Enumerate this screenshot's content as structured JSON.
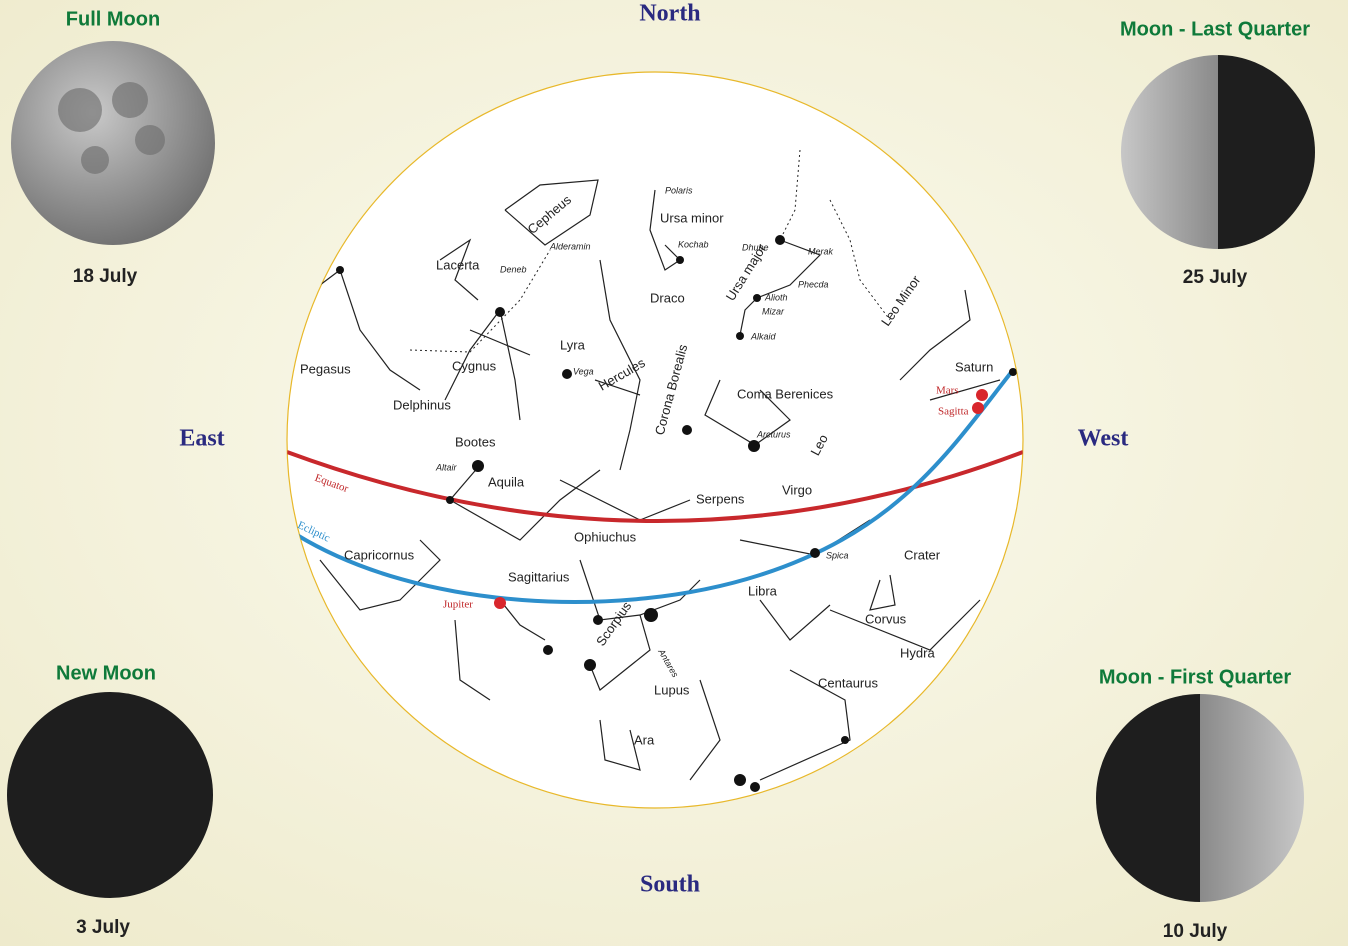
{
  "directions": {
    "north": "North",
    "east": "East",
    "west": "West",
    "south": "South"
  },
  "moons": [
    {
      "title": "Full Moon",
      "date": "18 July"
    },
    {
      "title": "Moon - Last Quarter",
      "date": "25 July"
    },
    {
      "title": "New Moon",
      "date": "3 July"
    },
    {
      "title": "Moon - First Quarter",
      "date": "10 July"
    }
  ],
  "labels": [
    "Polaris",
    "Ursa minor",
    "Cepheus",
    "Alderamin",
    "Kochab",
    "Dhube",
    "Merak",
    "Lacerta",
    "Ursa major",
    "Alioth",
    "Phecda",
    "Mizar",
    "Alkaid",
    "Draco",
    "Leo Minor",
    "Deneb",
    "Lyra",
    "Vega",
    "Hercules",
    "Corona Borealis",
    "Cygnus",
    "Pegasus",
    "Delphinus",
    "Bootes",
    "Coma Berenices",
    "Leo",
    "Saturn",
    "Mars",
    "Sagitta",
    "Altair",
    "Arcturus",
    "Aquila",
    "Equator",
    "Serpens",
    "Virgo",
    "Ecliptic",
    "Capricornus",
    "Ophiuchus",
    "Spica",
    "Crater",
    "Sagittarius",
    "Jupiter",
    "Libra",
    "Scorpius",
    "Antares",
    "Corvus",
    "Hydra",
    "Centaurus",
    "Lupus",
    "Ara"
  ]
}
